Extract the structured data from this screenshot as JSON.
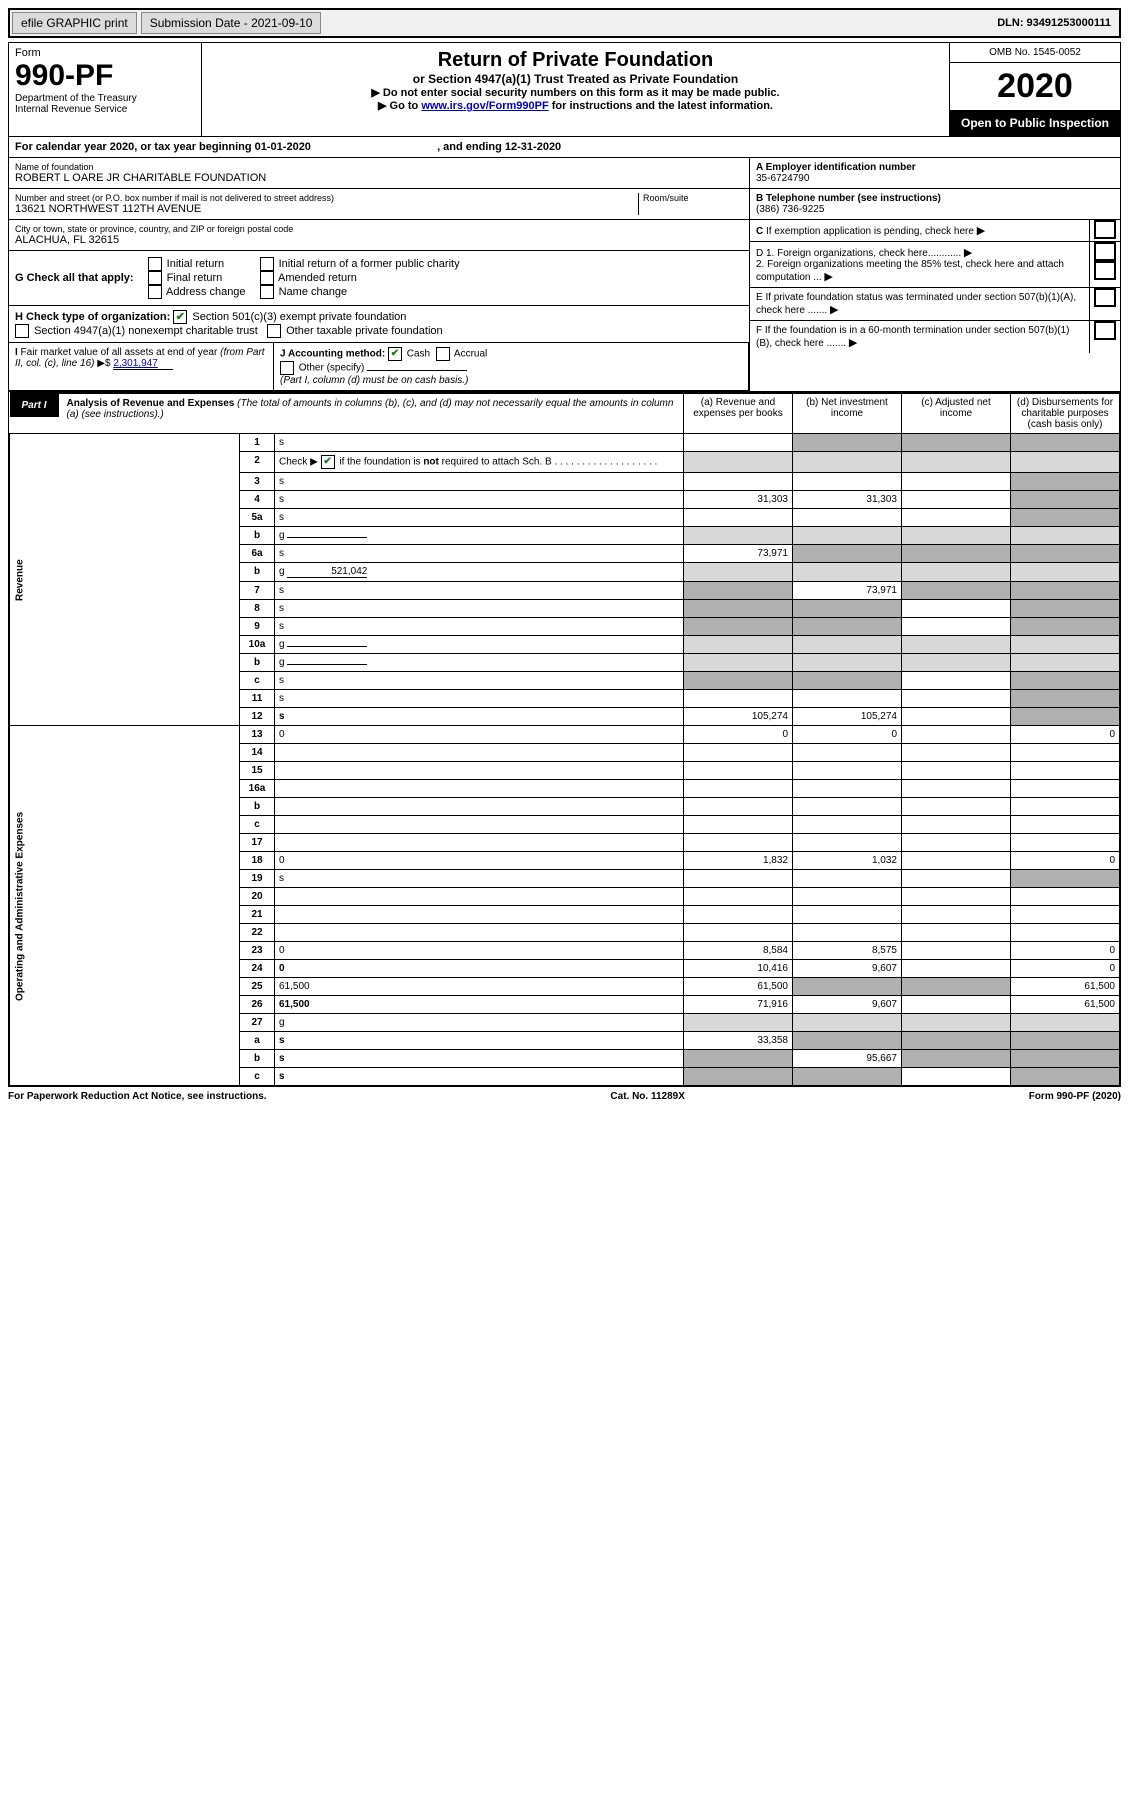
{
  "topbar": {
    "efile": "efile GRAPHIC print",
    "submission": "Submission Date - 2021-09-10",
    "dln": "DLN: 93491253000111"
  },
  "header": {
    "form": "Form",
    "formno": "990-PF",
    "dept": "Department of the Treasury\nInternal Revenue Service",
    "title": "Return of Private Foundation",
    "sub": "or Section 4947(a)(1) Trust Treated as Private Foundation",
    "note1": "▶ Do not enter social security numbers on this form as it may be made public.",
    "note2a": "▶ Go to ",
    "note2_link": "www.irs.gov/Form990PF",
    "note2b": " for instructions and the latest information.",
    "omb": "OMB No. 1545-0052",
    "year": "2020",
    "open": "Open to Public Inspection"
  },
  "cal": {
    "pre": "For calendar year 2020, or tax year beginning ",
    "begin": "01-01-2020",
    "mid": " , and ending ",
    "end": "12-31-2020"
  },
  "info": {
    "name_label": "Name of foundation",
    "name": "ROBERT L OARE JR CHARITABLE FOUNDATION",
    "addr_label": "Number and street (or P.O. box number if mail is not delivered to street address)",
    "room_label": "Room/suite",
    "addr": "13621 NORTHWEST 112TH AVENUE",
    "city_label": "City or town, state or province, country, and ZIP or foreign postal code",
    "city": "ALACHUA, FL  32615",
    "A_label": "A Employer identification number",
    "A": "35-6724790",
    "B_label": "B Telephone number (see instructions)",
    "B": "(386) 736-9225",
    "C": "C If exemption application is pending, check here",
    "D1": "D 1. Foreign organizations, check here............",
    "D2": "2. Foreign organizations meeting the 85% test, check here and attach computation ...",
    "E": "E If private foundation status was terminated under section 507(b)(1)(A), check here .......",
    "F": "F If the foundation is in a 60-month termination under section 507(b)(1)(B), check here ......."
  },
  "G": {
    "label": "G Check all that apply:",
    "opts": [
      "Initial return",
      "Final return",
      "Address change",
      "Initial return of a former public charity",
      "Amended return",
      "Name change"
    ]
  },
  "H": {
    "label": "H Check type of organization:",
    "opt1": "Section 501(c)(3) exempt private foundation",
    "opt2": "Section 4947(a)(1) nonexempt charitable trust",
    "opt3": "Other taxable private foundation"
  },
  "I": {
    "label": "I Fair market value of all assets at end of year (from Part II, col. (c), line 16) ▶$ ",
    "value": "2,301,947"
  },
  "J": {
    "label": "J Accounting method:",
    "cash": "Cash",
    "accrual": "Accrual",
    "other": "Other (specify)",
    "note": "(Part I, column (d) must be on cash basis.)"
  },
  "part1": {
    "badge": "Part I",
    "title": "Analysis of Revenue and Expenses",
    "desc": " (The total of amounts in columns (b), (c), and (d) may not necessarily equal the amounts in column (a) (see instructions).)",
    "cols": {
      "a": "(a) Revenue and expenses per books",
      "b": "(b) Net investment income",
      "c": "(c) Adjusted net income",
      "d": "(d) Disbursements for charitable purposes (cash basis only)"
    }
  },
  "sidebars": {
    "rev": "Revenue",
    "exp": "Operating and Administrative Expenses"
  },
  "rows": [
    {
      "n": "1",
      "d": "s",
      "a": "",
      "b": "s",
      "c": "s"
    },
    {
      "n": "2",
      "d": "g",
      "a": "g",
      "b": "g",
      "c": "g",
      "checkmark": true
    },
    {
      "n": "3",
      "d": "s",
      "a": "",
      "b": "",
      "c": ""
    },
    {
      "n": "4",
      "d": "s",
      "a": "31,303",
      "b": "31,303",
      "c": ""
    },
    {
      "n": "5a",
      "d": "s",
      "a": "",
      "b": "",
      "c": ""
    },
    {
      "n": "b",
      "d": "g",
      "a": "g",
      "b": "g",
      "c": "g",
      "box": true
    },
    {
      "n": "6a",
      "d": "s",
      "a": "73,971",
      "b": "s",
      "c": "s"
    },
    {
      "n": "b",
      "d": "g",
      "a": "g",
      "b": "g",
      "c": "g",
      "box": true,
      "boxval": "521,042"
    },
    {
      "n": "7",
      "d": "s",
      "a": "s",
      "b": "73,971",
      "c": "s"
    },
    {
      "n": "8",
      "d": "s",
      "a": "s",
      "b": "s",
      "c": ""
    },
    {
      "n": "9",
      "d": "s",
      "a": "s",
      "b": "s",
      "c": ""
    },
    {
      "n": "10a",
      "d": "g",
      "a": "g",
      "b": "g",
      "c": "g",
      "box": true
    },
    {
      "n": "b",
      "d": "g",
      "a": "g",
      "b": "g",
      "c": "g",
      "box": true
    },
    {
      "n": "c",
      "d": "s",
      "a": "s",
      "b": "s",
      "c": ""
    },
    {
      "n": "11",
      "d": "s",
      "a": "",
      "b": "",
      "c": ""
    },
    {
      "n": "12",
      "d": "s",
      "a": "105,274",
      "b": "105,274",
      "c": "",
      "bold": true
    }
  ],
  "exprows": [
    {
      "n": "13",
      "d": "0",
      "a": "0",
      "b": "0",
      "c": ""
    },
    {
      "n": "14",
      "d": "",
      "a": "",
      "b": "",
      "c": ""
    },
    {
      "n": "15",
      "d": "",
      "a": "",
      "b": "",
      "c": ""
    },
    {
      "n": "16a",
      "d": "",
      "a": "",
      "b": "",
      "c": ""
    },
    {
      "n": "b",
      "d": "",
      "a": "",
      "b": "",
      "c": ""
    },
    {
      "n": "c",
      "d": "",
      "a": "",
      "b": "",
      "c": ""
    },
    {
      "n": "17",
      "d": "",
      "a": "",
      "b": "",
      "c": ""
    },
    {
      "n": "18",
      "d": "0",
      "a": "1,832",
      "b": "1,032",
      "c": ""
    },
    {
      "n": "19",
      "d": "s",
      "a": "",
      "b": "",
      "c": ""
    },
    {
      "n": "20",
      "d": "",
      "a": "",
      "b": "",
      "c": ""
    },
    {
      "n": "21",
      "d": "",
      "a": "",
      "b": "",
      "c": ""
    },
    {
      "n": "22",
      "d": "",
      "a": "",
      "b": "",
      "c": ""
    },
    {
      "n": "23",
      "d": "0",
      "a": "8,584",
      "b": "8,575",
      "c": ""
    },
    {
      "n": "24",
      "d": "0",
      "a": "10,416",
      "b": "9,607",
      "c": "",
      "bold": true
    },
    {
      "n": "25",
      "d": "61,500",
      "a": "61,500",
      "b": "s",
      "c": "s"
    },
    {
      "n": "26",
      "d": "61,500",
      "a": "71,916",
      "b": "9,607",
      "c": "",
      "bold": true
    },
    {
      "n": "27",
      "d": "g",
      "a": "g",
      "b": "g",
      "c": "g"
    },
    {
      "n": "a",
      "d": "s",
      "a": "33,358",
      "b": "s",
      "c": "s",
      "bold": true
    },
    {
      "n": "b",
      "d": "s",
      "a": "s",
      "b": "95,667",
      "c": "s",
      "bold": true
    },
    {
      "n": "c",
      "d": "s",
      "a": "s",
      "b": "s",
      "c": "",
      "bold": true
    }
  ],
  "footer": {
    "left": "For Paperwork Reduction Act Notice, see instructions.",
    "center": "Cat. No. 11289X",
    "right": "Form 990-PF (2020)"
  }
}
